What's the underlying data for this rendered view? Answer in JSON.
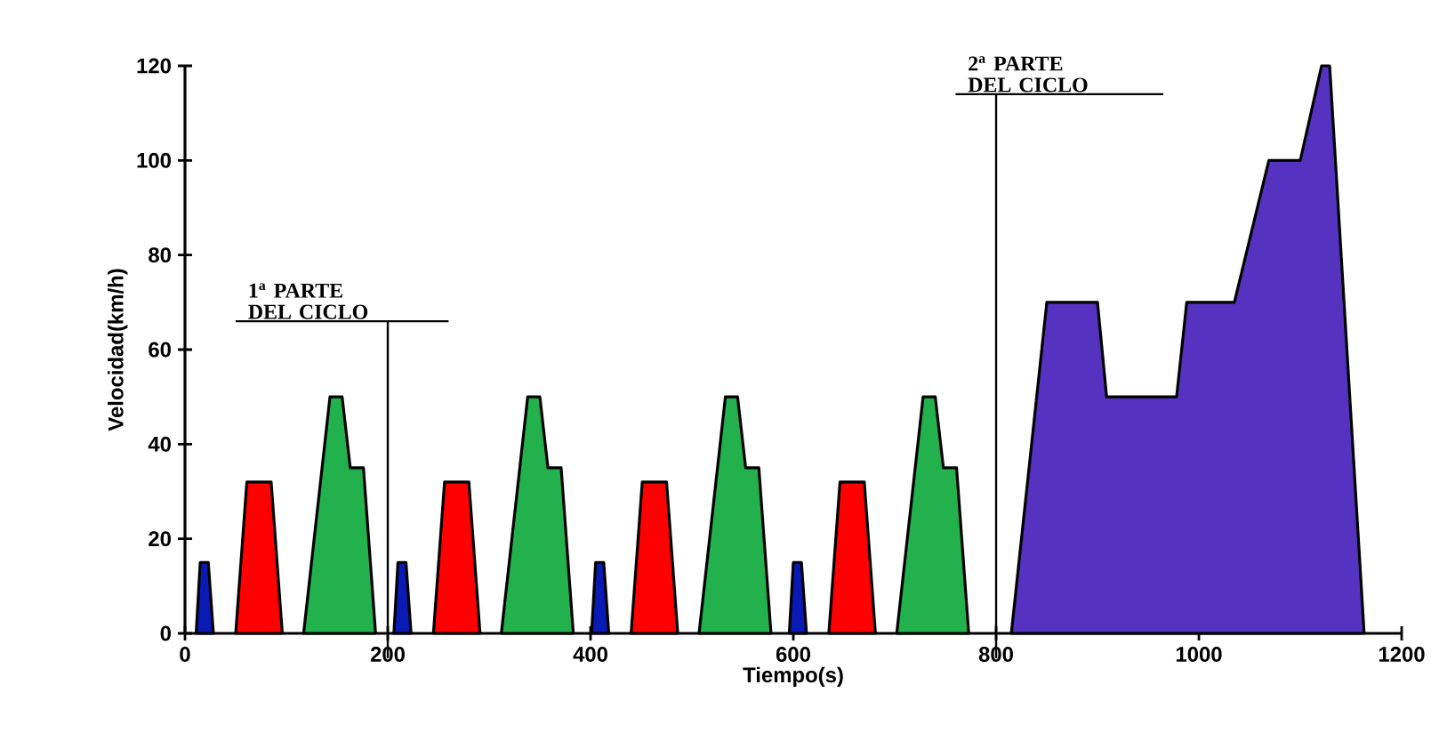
{
  "chart_data": {
    "type": "area",
    "xlabel": "Tiempo(s)",
    "ylabel": "Velocidad(km/h)",
    "xlim": [
      0,
      1200
    ],
    "ylim": [
      0,
      120
    ],
    "xticks": [
      0,
      200,
      400,
      600,
      800,
      1000,
      1200
    ],
    "yticks": [
      0,
      20,
      40,
      60,
      80,
      100,
      120
    ],
    "grid": false,
    "series": [
      {
        "color": "#0a1ab4",
        "x": [
          11,
          15,
          23,
          28
        ],
        "values": [
          0,
          15,
          15,
          0
        ]
      },
      {
        "color": "#ff0000",
        "x": [
          50,
          61,
          85,
          96
        ],
        "values": [
          0,
          32,
          32,
          0
        ]
      },
      {
        "color": "#22b14c",
        "x": [
          117,
          143,
          155,
          163,
          176,
          188
        ],
        "values": [
          0,
          50,
          50,
          35,
          35,
          0
        ]
      },
      {
        "color": "#0a1ab4",
        "x": [
          206,
          210,
          218,
          223
        ],
        "values": [
          0,
          15,
          15,
          0
        ]
      },
      {
        "color": "#ff0000",
        "x": [
          245,
          256,
          280,
          291
        ],
        "values": [
          0,
          32,
          32,
          0
        ]
      },
      {
        "color": "#22b14c",
        "x": [
          312,
          338,
          350,
          358,
          371,
          383
        ],
        "values": [
          0,
          50,
          50,
          35,
          35,
          0
        ]
      },
      {
        "color": "#0a1ab4",
        "x": [
          401,
          405,
          413,
          418
        ],
        "values": [
          0,
          15,
          15,
          0
        ]
      },
      {
        "color": "#ff0000",
        "x": [
          440,
          451,
          475,
          486
        ],
        "values": [
          0,
          32,
          32,
          0
        ]
      },
      {
        "color": "#22b14c",
        "x": [
          507,
          533,
          545,
          553,
          566,
          578
        ],
        "values": [
          0,
          50,
          50,
          35,
          35,
          0
        ]
      },
      {
        "color": "#0a1ab4",
        "x": [
          596,
          600,
          608,
          613
        ],
        "values": [
          0,
          15,
          15,
          0
        ]
      },
      {
        "color": "#ff0000",
        "x": [
          635,
          646,
          670,
          681
        ],
        "values": [
          0,
          32,
          32,
          0
        ]
      },
      {
        "color": "#22b14c",
        "x": [
          702,
          728,
          740,
          748,
          761,
          773
        ],
        "values": [
          0,
          50,
          50,
          35,
          35,
          0
        ]
      },
      {
        "color": "#5533c0",
        "x": [
          815,
          850,
          900,
          909,
          978,
          988,
          1035,
          1069,
          1100,
          1121,
          1129,
          1163
        ],
        "values": [
          0,
          70,
          70,
          50,
          50,
          70,
          70,
          100,
          100,
          120,
          120,
          0
        ]
      }
    ],
    "ref_lines": [
      {
        "axis": "x",
        "value": 200,
        "label": "1$^{a}$ PARTE DEL CICLO"
      },
      {
        "axis": "x",
        "value": 800,
        "label": "2$^{a}$ PARTE DEL CICLO"
      }
    ]
  }
}
